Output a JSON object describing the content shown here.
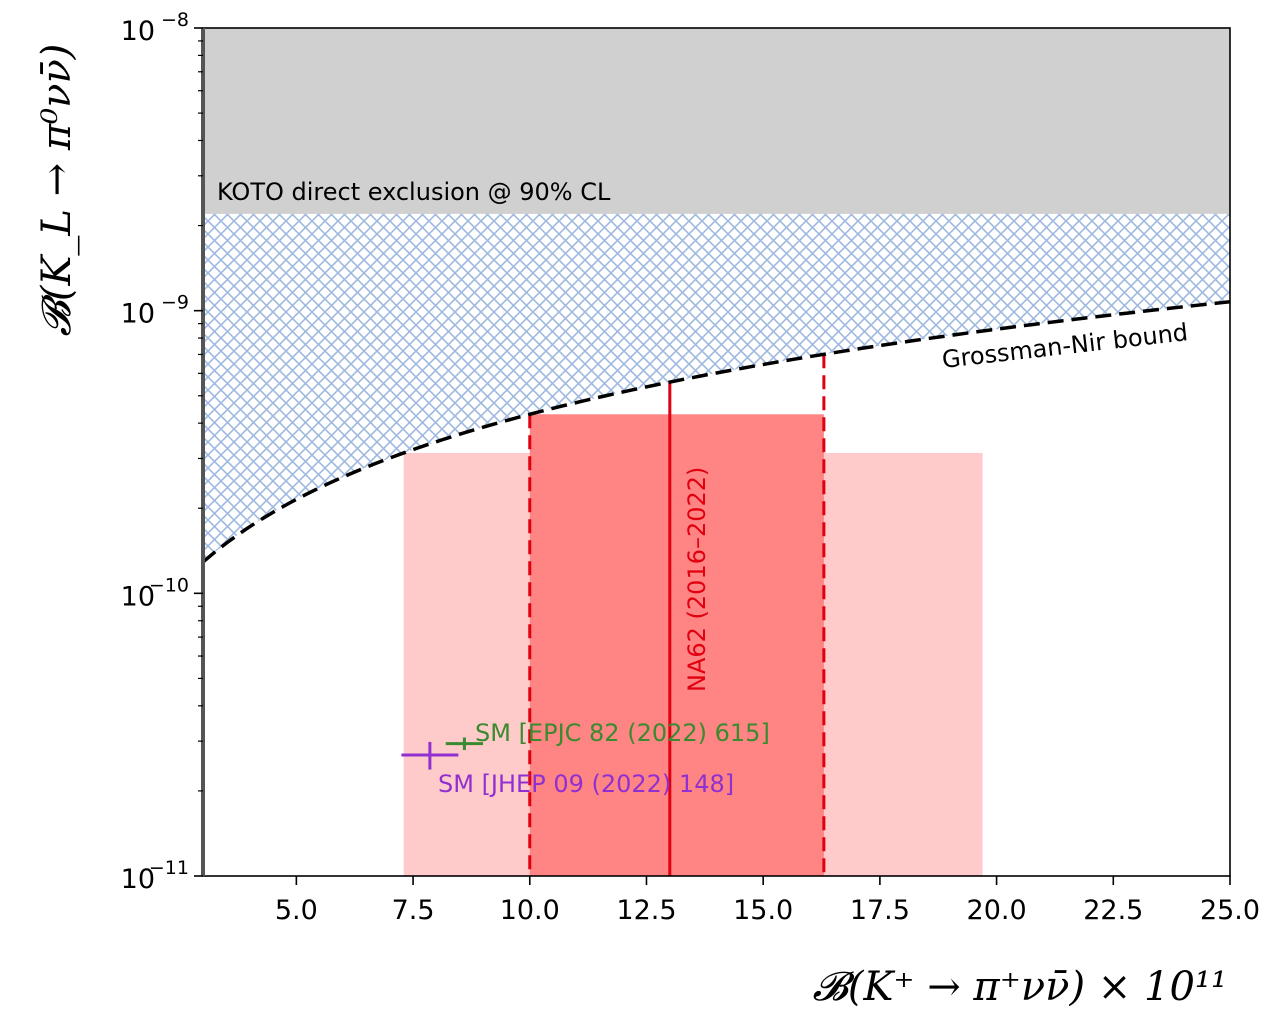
{
  "chart_data": {
    "type": "area",
    "xlabel": "𝓑(K⁺ → π⁺νν̄) × 10¹¹",
    "ylabel": "𝓑(K_L → π⁰νν̄)",
    "xlim": [
      3.0,
      25.0
    ],
    "ylim": [
      1e-11,
      1e-08
    ],
    "yscale": "log",
    "grid": false,
    "x_ticks": [
      5.0,
      7.5,
      10.0,
      12.5,
      15.0,
      17.5,
      20.0,
      22.5,
      25.0
    ],
    "x_tick_labels": [
      "5.0",
      "7.5",
      "10.0",
      "12.5",
      "15.0",
      "17.5",
      "20.0",
      "22.5",
      "25.0"
    ],
    "y_ticks": [
      {
        "value": 1e-11,
        "base": "10",
        "exp": "−11"
      },
      {
        "value": 1e-10,
        "base": "10",
        "exp": "−10"
      },
      {
        "value": 1e-09,
        "base": "10",
        "exp": "−9"
      },
      {
        "value": 1e-08,
        "base": "10",
        "exp": "−8"
      }
    ],
    "regions": {
      "koto": {
        "label": "KOTO direct exclusion @ 90% CL",
        "y_min": 2.2e-09,
        "color": "#d0d0d0"
      },
      "grossman_nir": {
        "label": "Grossman-Nir bound",
        "factor": 4.3,
        "hatch_color": "#9fb9e0"
      },
      "na62": {
        "label": "NA62 (2016–2022)",
        "central": 13.0,
        "inner_band": [
          10.0,
          16.3
        ],
        "outer_band": [
          7.3,
          19.7
        ],
        "line_color": "#e0000f",
        "inner_color": "#ff8484",
        "outer_color": "#ffcaca"
      }
    },
    "points": [
      {
        "label": "SM [EPJC 82 (2022) 615]",
        "x": 8.6,
        "x_err": [
          0.4,
          0.4
        ],
        "y": 2.94e-11,
        "y_err": [
          1.5e-12,
          1.5e-12
        ],
        "color": "#3a8a30"
      },
      {
        "label": "SM [JHEP 09 (2022) 148]",
        "x": 7.86,
        "x_err": [
          0.61,
          0.61
        ],
        "y": 2.68e-11,
        "y_err": [
          3e-12,
          3e-12
        ],
        "color": "#9030d0"
      }
    ]
  }
}
